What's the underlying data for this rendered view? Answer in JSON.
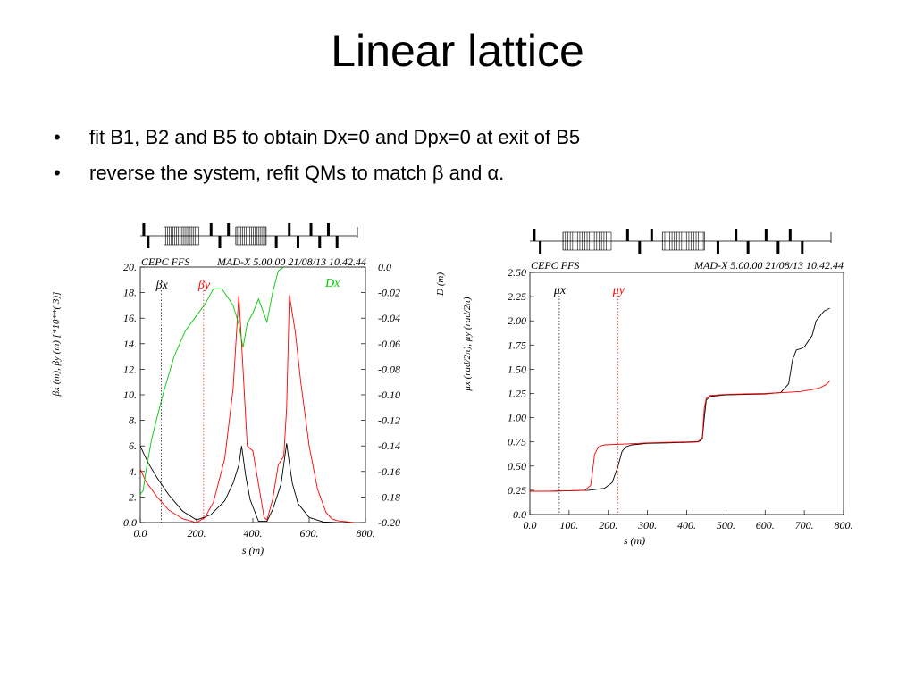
{
  "slide": {
    "title": "Linear lattice",
    "bullet_symbol": "•",
    "bullets": [
      "fit B1, B2 and B5 to obtain Dx=0 and Dpx=0 at exit of B5",
      "reverse the system, refit QMs to match β and α."
    ]
  },
  "colors": {
    "black": "#000000",
    "red": "#ff0000",
    "green": "#00cc00",
    "gray": "#777777"
  },
  "chart_data": [
    {
      "type": "line",
      "header_left": "CEPC FFS",
      "header_right": "MAD-X 5.00.00   21/08/13 10.42.44",
      "xlabel": "s (m)",
      "ylabel_left": "βx (m), βy (m)   [*10**( 3)]",
      "ylabel_right": "Dx",
      "xlim": [
        0,
        800
      ],
      "ylim_left": [
        0,
        20
      ],
      "ylim_right": [
        -0.2,
        0.0
      ],
      "x_ticks": [
        "0.0",
        "200.",
        "400.",
        "600.",
        "800."
      ],
      "y_ticks_left": [
        "0.0",
        "2.",
        "4.",
        "6.",
        "8.",
        "10.",
        "12.",
        "14.",
        "16.",
        "18.",
        "20."
      ],
      "y_ticks_right": [
        "-0.20",
        "-0.18",
        "-0.16",
        "-0.14",
        "-0.12",
        "-0.10",
        "-0.08",
        "-0.06",
        "-0.04",
        "-0.02",
        "0.0"
      ],
      "legend": [
        {
          "label": "βx",
          "color": "#000000",
          "x": 75
        },
        {
          "label": "βy",
          "color": "#ff0000",
          "x": 225
        },
        {
          "label": "Dx",
          "color": "#00cc00"
        }
      ],
      "series": [
        {
          "name": "βx",
          "color": "#000000",
          "axis": "left",
          "x": [
            0,
            10,
            30,
            60,
            100,
            150,
            200,
            250,
            300,
            330,
            350,
            360,
            375,
            390,
            420,
            450,
            470,
            500,
            520,
            530,
            540,
            560,
            600,
            650,
            700,
            760
          ],
          "y": [
            6.0,
            5.5,
            4.6,
            3.5,
            2.2,
            0.9,
            0.2,
            0.6,
            1.7,
            3.1,
            4.5,
            6.0,
            3.6,
            1.8,
            0.1,
            0.1,
            1.0,
            3.0,
            6.2,
            4.6,
            3.1,
            1.5,
            0.4,
            0.05,
            0.0,
            0.0
          ]
        },
        {
          "name": "βy",
          "color": "#ff0000",
          "axis": "left",
          "x": [
            0,
            20,
            60,
            100,
            150,
            200,
            230,
            260,
            300,
            330,
            350,
            365,
            380,
            400,
            420,
            440,
            450,
            470,
            490,
            510,
            520,
            530,
            550,
            570,
            600,
            630,
            660,
            680,
            700,
            760
          ],
          "y": [
            4.2,
            3.2,
            2.0,
            1.0,
            0.3,
            0.0,
            0.4,
            1.6,
            5.0,
            10.5,
            17.8,
            12.0,
            6.0,
            5.6,
            3.0,
            0.4,
            0.2,
            1.8,
            4.5,
            5.2,
            9.0,
            17.8,
            15.0,
            11.0,
            6.0,
            2.6,
            0.8,
            0.3,
            0.15,
            0.0
          ]
        },
        {
          "name": "Dx",
          "color": "#00cc00",
          "axis": "right",
          "x": [
            0,
            10,
            20,
            40,
            80,
            120,
            160,
            200,
            230,
            260,
            290,
            330,
            350,
            365,
            380,
            400,
            420,
            450,
            470,
            490,
            510
          ],
          "y": [
            -0.178,
            -0.175,
            -0.16,
            -0.135,
            -0.1,
            -0.07,
            -0.05,
            -0.038,
            -0.029,
            -0.017,
            -0.017,
            -0.03,
            -0.045,
            -0.063,
            -0.044,
            -0.036,
            -0.025,
            -0.043,
            -0.02,
            -0.003,
            0.0
          ]
        }
      ]
    },
    {
      "type": "line",
      "header_left": "CEPC FFS",
      "header_right": "MAD-X 5.00.00   21/08/13 10.42.44",
      "xlabel": "s (m)",
      "ylabel_left": "μx (rad/2π), μy (rad/2π)",
      "ylabel_right": "D (m)",
      "xlim": [
        0,
        800
      ],
      "ylim": [
        0,
        2.5
      ],
      "x_ticks": [
        "0.0",
        "100.",
        "200.",
        "300.",
        "400.",
        "500.",
        "600.",
        "700.",
        "800."
      ],
      "y_ticks": [
        "0.0",
        "0.25",
        "0.50",
        "0.75",
        "1.00",
        "1.25",
        "1.50",
        "1.75",
        "2.00",
        "2.25",
        "2.50"
      ],
      "legend": [
        {
          "label": "μx",
          "color": "#000000",
          "x": 75
        },
        {
          "label": "μy",
          "color": "#ff0000",
          "x": 225
        }
      ],
      "series": [
        {
          "name": "μx",
          "color": "#000000",
          "x": [
            0,
            50,
            100,
            150,
            190,
            210,
            225,
            235,
            245,
            260,
            300,
            350,
            400,
            430,
            440,
            445,
            450,
            460,
            500,
            550,
            600,
            640,
            660,
            670,
            680,
            690,
            700,
            720,
            730,
            750,
            765
          ],
          "y": [
            0.24,
            0.24,
            0.245,
            0.25,
            0.27,
            0.33,
            0.5,
            0.65,
            0.7,
            0.72,
            0.735,
            0.74,
            0.745,
            0.75,
            0.78,
            1.0,
            1.18,
            1.22,
            1.235,
            1.24,
            1.245,
            1.26,
            1.35,
            1.6,
            1.7,
            1.71,
            1.73,
            1.85,
            2.0,
            2.1,
            2.13
          ]
        },
        {
          "name": "μy",
          "color": "#ff0000",
          "x": [
            0,
            50,
            100,
            140,
            155,
            160,
            165,
            175,
            190,
            250,
            300,
            350,
            400,
            430,
            440,
            445,
            450,
            460,
            500,
            550,
            600,
            650,
            690,
            720,
            740,
            755,
            765
          ],
          "y": [
            0.24,
            0.24,
            0.245,
            0.25,
            0.3,
            0.45,
            0.62,
            0.7,
            0.72,
            0.73,
            0.74,
            0.745,
            0.75,
            0.755,
            0.8,
            1.1,
            1.2,
            1.23,
            1.24,
            1.245,
            1.25,
            1.26,
            1.27,
            1.29,
            1.31,
            1.34,
            1.38
          ]
        }
      ]
    }
  ]
}
